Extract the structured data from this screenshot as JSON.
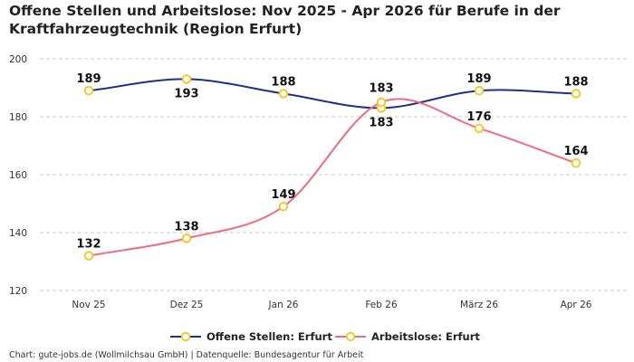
{
  "title": "Offene Stellen und Arbeitslose: Nov 2025 - Apr 2026 für Berufe in der Kraftfahrzeugtechnik (Region Erfurt)",
  "source": "Chart: gute-jobs.de (Wollmilchsau GmbH) | Datenquelle: Bundesagentur für Arbeit",
  "chart_data": {
    "type": "line",
    "title": "Offene Stellen und Arbeitslose: Nov 2025 - Apr 2026 für Berufe in der Kraftfahrzeugtechnik (Region Erfurt)",
    "categories": [
      "Nov 25",
      "Dez 25",
      "Jan 26",
      "Feb 26",
      "März 26",
      "Apr 26"
    ],
    "ylim": [
      120,
      200
    ],
    "yticks": [
      120,
      140,
      160,
      180,
      200
    ],
    "grid": true,
    "legend": "bottom",
    "series": [
      {
        "name": "Offene Stellen: Erfurt",
        "color": "#1f2f8a",
        "values": [
          189,
          193,
          188,
          183,
          189,
          188
        ],
        "label_pos": [
          "above",
          "below",
          "above",
          "below",
          "above",
          "above"
        ]
      },
      {
        "name": "Arbeitslose: Erfurt",
        "color": "#f06b81",
        "values": [
          132,
          138,
          149,
          185,
          176,
          164
        ],
        "labels": [
          "132",
          "138",
          "149",
          "",
          "176",
          "164"
        ],
        "label_pos": [
          "above",
          "above",
          "above",
          "above",
          "above",
          "above"
        ]
      }
    ],
    "extra_labels": [
      {
        "text": "183",
        "category": "Feb 26",
        "y": 183
      }
    ],
    "marker_fill": "#ffffff",
    "marker_stroke": "#f5c518"
  }
}
